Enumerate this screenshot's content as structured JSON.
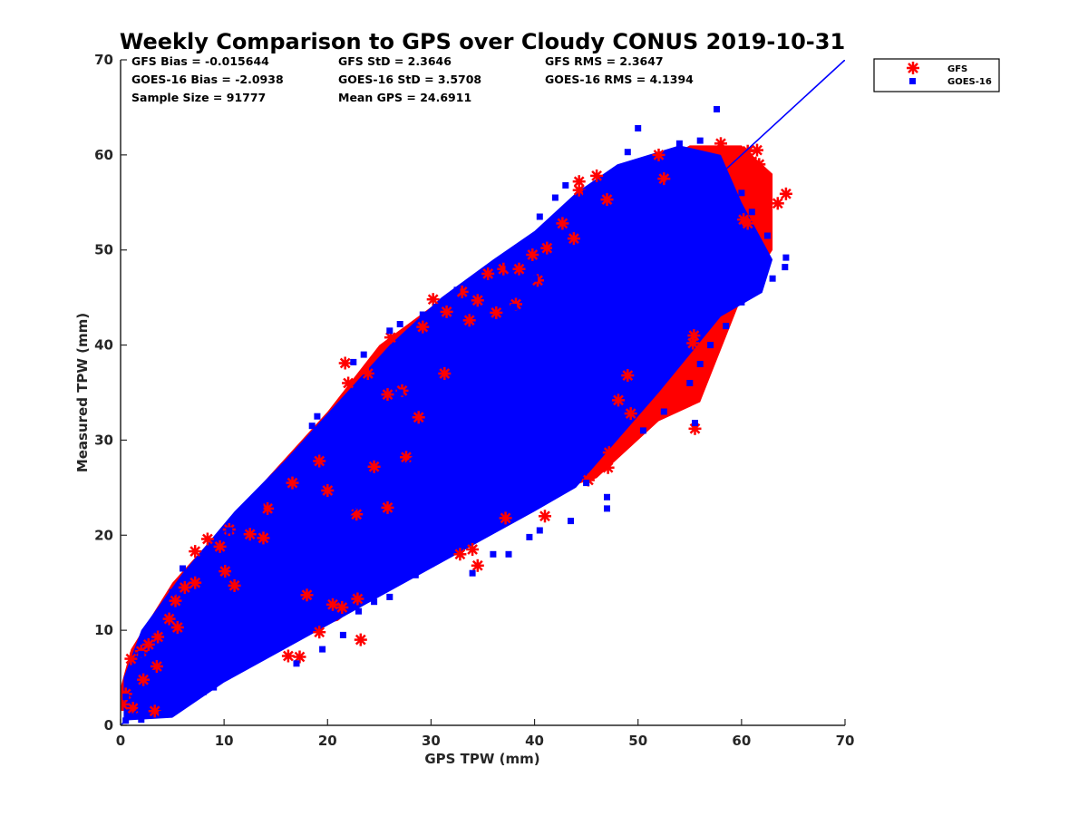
{
  "chart_data": {
    "type": "scatter",
    "title": "Weekly Comparison to GPS over Cloudy CONUS 2019-10-31",
    "xlabel": "GPS TPW (mm)",
    "ylabel": "Measured TPW (mm)",
    "xlim": [
      0,
      70
    ],
    "ylim": [
      0,
      70
    ],
    "x_ticks": [
      "0",
      "10",
      "20",
      "30",
      "40",
      "50",
      "60",
      "70"
    ],
    "y_ticks": [
      "0",
      "10",
      "20",
      "30",
      "40",
      "50",
      "60",
      "70"
    ],
    "grid": false,
    "legend_position": "outside top-right",
    "reference_line": {
      "from": [
        0,
        0
      ],
      "to": [
        70,
        70
      ],
      "color": "#0000ff"
    },
    "stats": [
      [
        "GFS Bias = -0.015644",
        "GFS StD = 2.3646",
        "GFS RMS = 2.3647"
      ],
      [
        "GOES-16 Bias = -2.0938",
        "GOES-16 StD = 3.5708",
        "GOES-16 RMS = 4.1394"
      ],
      [
        "Sample Size = 91777",
        "Mean GPS = 24.6911",
        ""
      ]
    ],
    "series": [
      {
        "name": "GFS",
        "color": "#ff0000",
        "marker": "asterisk",
        "points": [
          [
            0.2,
            2.2
          ],
          [
            0.5,
            3.3
          ],
          [
            1.0,
            7.0
          ],
          [
            2.0,
            7.8
          ],
          [
            2.7,
            8.5
          ],
          [
            3.6,
            9.3
          ],
          [
            4.7,
            11.2
          ],
          [
            5.3,
            13.1
          ],
          [
            6.2,
            14.5
          ],
          [
            7.2,
            15.0
          ],
          [
            8.4,
            19.6
          ],
          [
            9.6,
            18.8
          ],
          [
            10.5,
            20.6
          ],
          [
            10.1,
            16.2
          ],
          [
            16.6,
            25.5
          ],
          [
            16.2,
            7.3
          ],
          [
            17.3,
            7.2
          ],
          [
            19.2,
            9.8
          ],
          [
            21.7,
            38.1
          ],
          [
            22.0,
            36.0
          ],
          [
            23.9,
            37.0
          ],
          [
            23.2,
            9.0
          ],
          [
            21.4,
            12.4
          ],
          [
            26.1,
            40.8
          ],
          [
            25.8,
            34.8
          ],
          [
            27.2,
            35.2
          ],
          [
            29.2,
            41.9
          ],
          [
            30.2,
            44.8
          ],
          [
            31.5,
            43.5
          ],
          [
            33.0,
            45.6
          ],
          [
            34.5,
            44.7
          ],
          [
            35.5,
            47.5
          ],
          [
            37.0,
            48.0
          ],
          [
            38.5,
            48.0
          ],
          [
            39.8,
            49.5
          ],
          [
            41.2,
            50.2
          ],
          [
            41.0,
            22.0
          ],
          [
            37.2,
            21.8
          ],
          [
            34.5,
            16.8
          ],
          [
            32.8,
            18.0
          ],
          [
            34.0,
            18.5
          ],
          [
            44.3,
            57.2
          ],
          [
            44.3,
            56.3
          ],
          [
            47.0,
            55.3
          ],
          [
            47.2,
            28.7
          ],
          [
            47.1,
            27.1
          ],
          [
            45.2,
            25.8
          ],
          [
            48.1,
            34.2
          ],
          [
            49.3,
            32.8
          ],
          [
            52.8,
            33.4
          ],
          [
            55.5,
            31.2
          ],
          [
            55.3,
            40.2
          ],
          [
            55.4,
            41.0
          ],
          [
            55.0,
            37.5
          ],
          [
            54.0,
            35.5
          ],
          [
            49.0,
            36.8
          ],
          [
            58.0,
            61.2
          ],
          [
            58.7,
            60.1
          ],
          [
            59.3,
            58.8
          ],
          [
            59.8,
            60.2
          ],
          [
            60.6,
            60.4
          ],
          [
            61.0,
            59.3
          ],
          [
            61.5,
            60.5
          ],
          [
            61.7,
            59.0
          ],
          [
            60.5,
            56.9
          ],
          [
            61.4,
            56.4
          ],
          [
            60.2,
            53.2
          ],
          [
            60.6,
            52.8
          ],
          [
            63.5,
            54.9
          ],
          [
            64.3,
            55.9
          ],
          [
            52.5,
            57.5
          ],
          [
            52.0,
            60.0
          ],
          [
            46.0,
            57.8
          ],
          [
            43.8,
            51.2
          ],
          [
            42.7,
            52.8
          ],
          [
            40.3,
            46.8
          ],
          [
            38.2,
            44.3
          ],
          [
            36.3,
            43.4
          ],
          [
            33.7,
            42.6
          ],
          [
            31.3,
            37.0
          ],
          [
            28.8,
            32.4
          ],
          [
            27.6,
            28.2
          ],
          [
            25.8,
            22.9
          ],
          [
            22.8,
            22.2
          ],
          [
            24.5,
            27.2
          ],
          [
            20.0,
            24.7
          ],
          [
            19.2,
            27.8
          ],
          [
            14.2,
            22.8
          ],
          [
            13.8,
            19.7
          ],
          [
            18.0,
            13.7
          ],
          [
            20.5,
            12.7
          ],
          [
            22.9,
            13.3
          ],
          [
            12.5,
            20.1
          ],
          [
            11.0,
            14.7
          ],
          [
            7.2,
            18.3
          ],
          [
            5.5,
            10.3
          ],
          [
            3.5,
            6.2
          ],
          [
            2.2,
            4.8
          ],
          [
            1.2,
            1.8
          ],
          [
            3.3,
            1.5
          ]
        ]
      },
      {
        "name": "GOES-16",
        "color": "#0000ff",
        "marker": "square",
        "points": [
          [
            57.6,
            64.8
          ],
          [
            50.0,
            62.8
          ],
          [
            56.0,
            61.5
          ],
          [
            54.0,
            61.2
          ],
          [
            49.0,
            60.3
          ],
          [
            45.0,
            56.0
          ],
          [
            43.0,
            56.8
          ],
          [
            42.0,
            55.5
          ],
          [
            40.5,
            53.5
          ],
          [
            39.5,
            50.8
          ],
          [
            38.0,
            49.5
          ],
          [
            37.5,
            48.2
          ],
          [
            34.0,
            46.5
          ],
          [
            32.5,
            45.8
          ],
          [
            30.5,
            44.0
          ],
          [
            29.2,
            43.2
          ],
          [
            27.0,
            42.2
          ],
          [
            26.0,
            41.5
          ],
          [
            23.5,
            39.0
          ],
          [
            22.5,
            38.2
          ],
          [
            19.0,
            32.5
          ],
          [
            18.5,
            31.5
          ],
          [
            17.0,
            28.5
          ],
          [
            16.0,
            26.8
          ],
          [
            15.0,
            25.2
          ],
          [
            13.5,
            23.0
          ],
          [
            11.0,
            21.5
          ],
          [
            10.5,
            20.5
          ],
          [
            8.0,
            17.8
          ],
          [
            6.0,
            16.5
          ],
          [
            5.0,
            14.0
          ],
          [
            3.0,
            10.0
          ],
          [
            2.0,
            7.5
          ],
          [
            1.0,
            5.0
          ],
          [
            0.5,
            3.0
          ],
          [
            0.5,
            0.5
          ],
          [
            2.0,
            0.6
          ],
          [
            4.0,
            1.2
          ],
          [
            6.0,
            2.5
          ],
          [
            8.0,
            3.5
          ],
          [
            10.0,
            5.5
          ],
          [
            12.0,
            6.5
          ],
          [
            14.0,
            8.5
          ],
          [
            17.0,
            6.5
          ],
          [
            19.5,
            8.0
          ],
          [
            21.5,
            9.5
          ],
          [
            23.0,
            12.0
          ],
          [
            24.5,
            13.0
          ],
          [
            26.0,
            13.5
          ],
          [
            28.5,
            15.8
          ],
          [
            30.0,
            17.0
          ],
          [
            32.5,
            19.5
          ],
          [
            34.0,
            16.0
          ],
          [
            36.0,
            18.0
          ],
          [
            37.5,
            18.0
          ],
          [
            39.5,
            19.8
          ],
          [
            40.5,
            20.5
          ],
          [
            43.5,
            21.5
          ],
          [
            47.0,
            22.8
          ],
          [
            47.0,
            24.0
          ],
          [
            45.0,
            25.5
          ],
          [
            50.5,
            31.0
          ],
          [
            52.5,
            33.0
          ],
          [
            55.5,
            31.8
          ],
          [
            55.0,
            36.0
          ],
          [
            56.0,
            38.0
          ],
          [
            57.0,
            40.0
          ],
          [
            58.5,
            42.0
          ],
          [
            60.0,
            44.5
          ],
          [
            61.5,
            46.0
          ],
          [
            63.0,
            47.0
          ],
          [
            64.2,
            48.2
          ],
          [
            64.3,
            49.2
          ],
          [
            62.0,
            50.0
          ],
          [
            62.5,
            51.5
          ],
          [
            60.0,
            56.0
          ],
          [
            58.0,
            58.5
          ],
          [
            53.0,
            59.5
          ],
          [
            51.0,
            58.0
          ],
          [
            48.0,
            56.5
          ],
          [
            46.0,
            55.0
          ],
          [
            44.0,
            53.0
          ],
          [
            42.0,
            50.0
          ],
          [
            40.0,
            47.0
          ],
          [
            38.0,
            44.0
          ],
          [
            36.0,
            41.5
          ],
          [
            34.0,
            39.0
          ],
          [
            32.0,
            36.0
          ],
          [
            30.0,
            33.5
          ],
          [
            28.0,
            31.0
          ],
          [
            26.0,
            28.5
          ],
          [
            24.0,
            26.0
          ],
          [
            22.0,
            23.5
          ],
          [
            20.0,
            21.0
          ],
          [
            18.0,
            18.5
          ],
          [
            16.0,
            16.0
          ],
          [
            14.0,
            13.5
          ],
          [
            12.0,
            11.5
          ],
          [
            10.0,
            9.5
          ],
          [
            8.0,
            7.5
          ],
          [
            6.0,
            5.5
          ],
          [
            4.0,
            3.5
          ],
          [
            2.0,
            2.0
          ],
          [
            3.0,
            5.5
          ],
          [
            5.0,
            8.0
          ],
          [
            7.0,
            11.0
          ],
          [
            9.0,
            13.0
          ],
          [
            11.0,
            16.0
          ],
          [
            13.0,
            18.0
          ],
          [
            15.0,
            20.5
          ],
          [
            17.0,
            23.0
          ],
          [
            19.0,
            25.5
          ],
          [
            21.0,
            28.0
          ],
          [
            23.0,
            30.0
          ],
          [
            25.0,
            32.5
          ],
          [
            27.0,
            35.0
          ],
          [
            29.0,
            37.0
          ],
          [
            31.0,
            39.0
          ],
          [
            33.0,
            41.0
          ],
          [
            35.0,
            43.0
          ],
          [
            37.0,
            45.0
          ],
          [
            39.0,
            47.0
          ],
          [
            41.0,
            48.5
          ],
          [
            43.0,
            50.0
          ],
          [
            45.0,
            51.5
          ],
          [
            47.0,
            53.0
          ],
          [
            49.0,
            54.5
          ],
          [
            51.0,
            56.0
          ],
          [
            53.0,
            57.0
          ],
          [
            55.0,
            58.0
          ],
          [
            57.0,
            59.0
          ],
          [
            5.0,
            1.5
          ],
          [
            7.0,
            3.0
          ],
          [
            9.0,
            4.0
          ],
          [
            11.0,
            6.0
          ],
          [
            13.0,
            7.5
          ],
          [
            15.0,
            9.5
          ],
          [
            17.0,
            11.0
          ],
          [
            19.0,
            13.0
          ],
          [
            21.0,
            15.0
          ],
          [
            23.0,
            17.0
          ],
          [
            25.0,
            19.0
          ],
          [
            27.0,
            21.0
          ],
          [
            29.0,
            23.0
          ],
          [
            31.0,
            24.5
          ],
          [
            33.0,
            26.5
          ],
          [
            35.0,
            28.5
          ],
          [
            37.0,
            30.5
          ],
          [
            39.0,
            32.0
          ],
          [
            41.0,
            34.0
          ],
          [
            43.0,
            36.0
          ],
          [
            45.0,
            38.0
          ],
          [
            47.0,
            40.0
          ],
          [
            49.0,
            42.0
          ],
          [
            51.0,
            44.0
          ],
          [
            53.0,
            46.0
          ],
          [
            55.0,
            48.0
          ],
          [
            57.0,
            50.0
          ],
          [
            59.0,
            52.0
          ],
          [
            61.0,
            54.0
          ]
        ]
      }
    ]
  }
}
